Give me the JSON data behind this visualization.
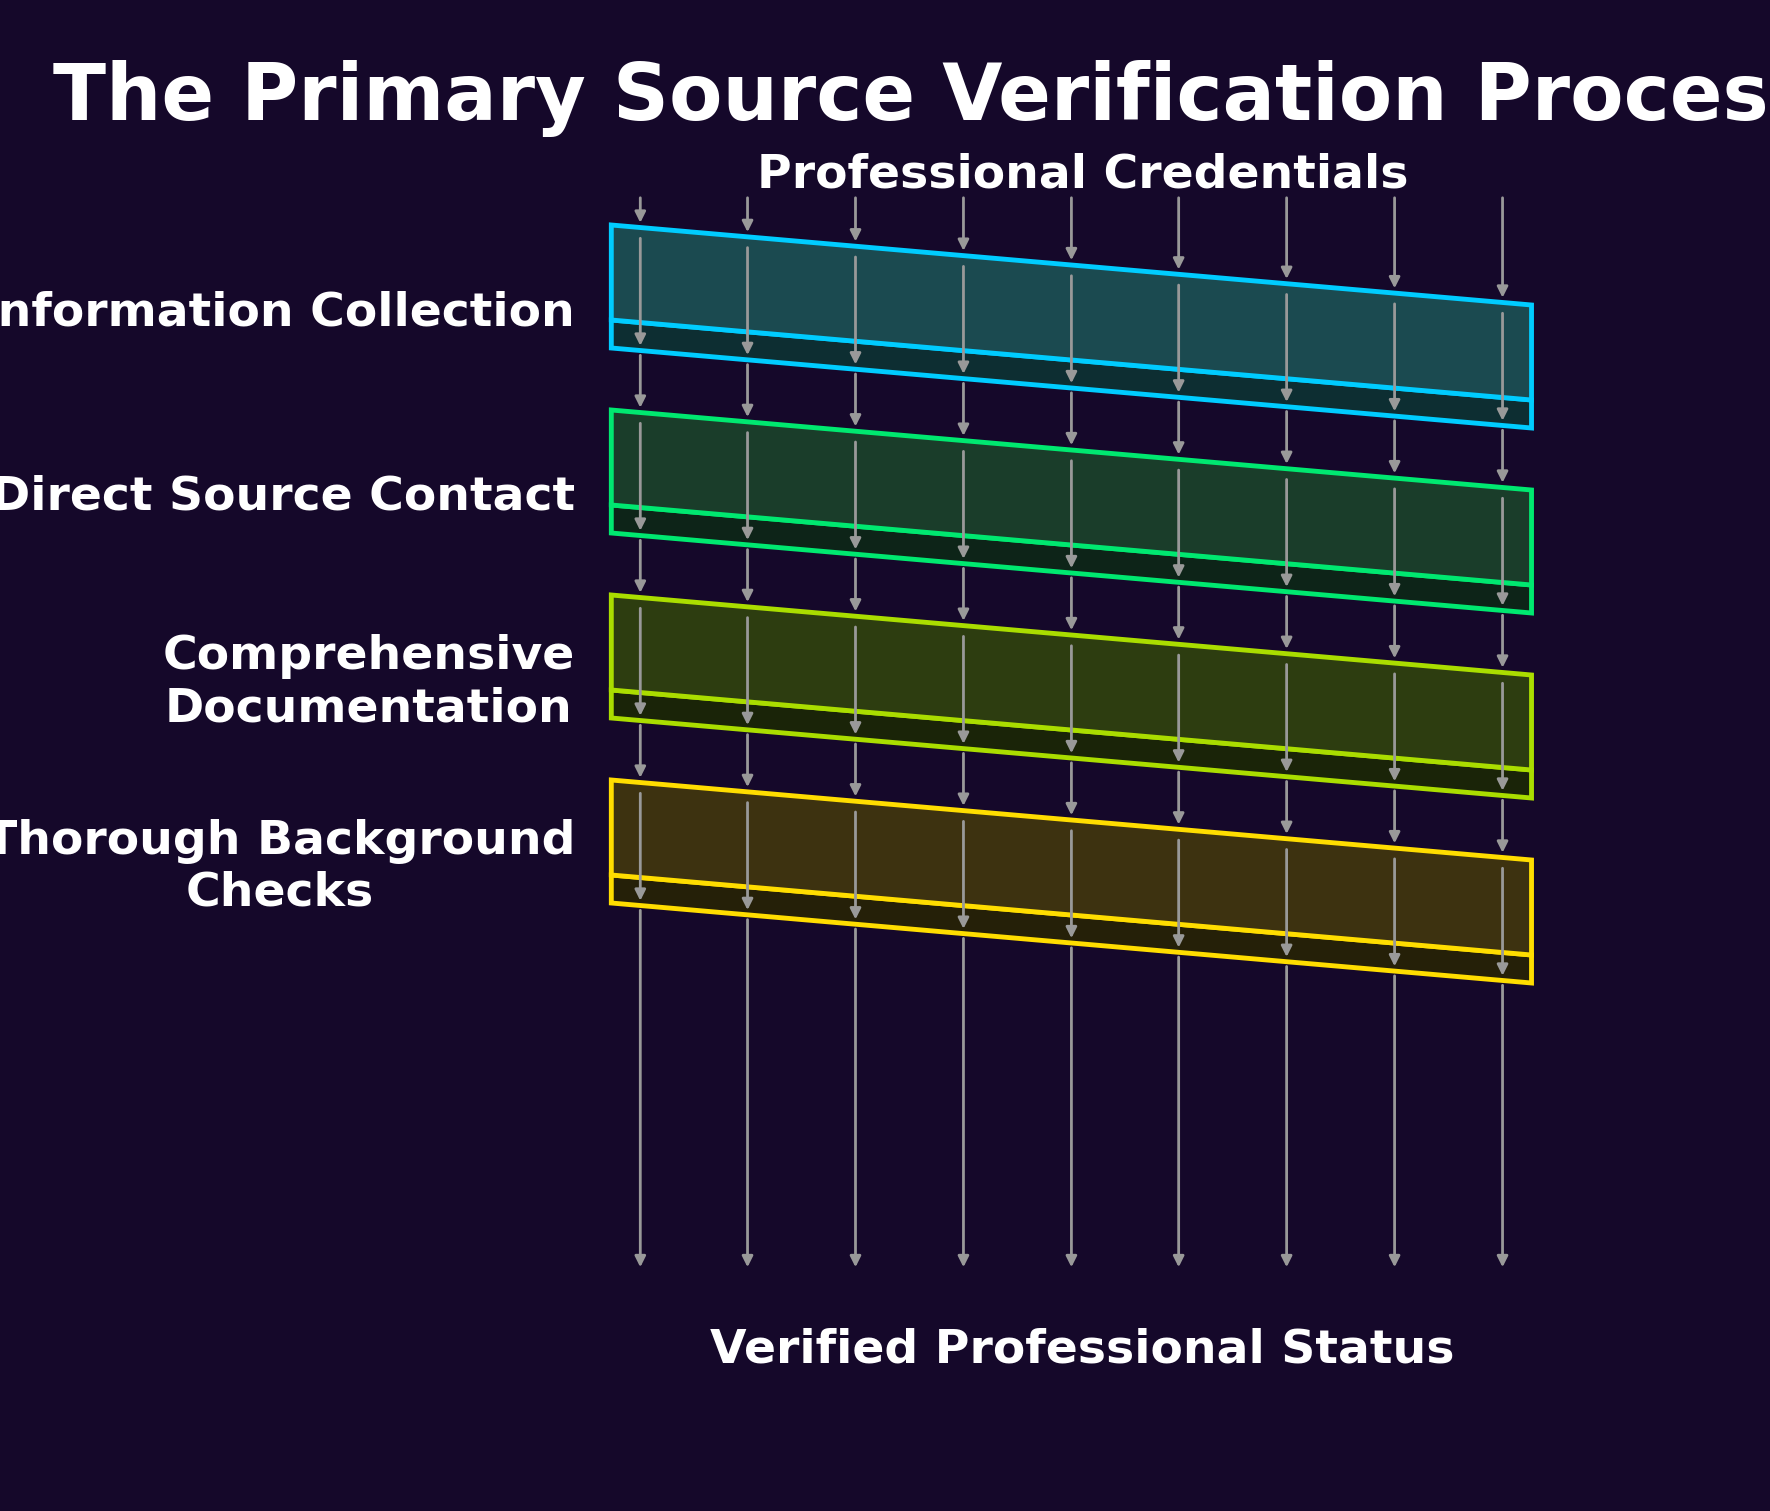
{
  "title": "The Primary Source Verification Process",
  "background_color": "#15082a",
  "text_color": "#ffffff",
  "title_fontsize": 56,
  "label_fontsize": 34,
  "top_label": "Professional Credentials",
  "bottom_label": "Verified Professional Status",
  "layers": [
    {
      "name": "Information Collection",
      "border_color": "#00ccff",
      "fill_color": "#1b4a50",
      "side_color": "#0d2e32"
    },
    {
      "name": "Direct Source Contact",
      "border_color": "#00e870",
      "fill_color": "#1a3d2a",
      "side_color": "#0d2418"
    },
    {
      "name": "Comprehensive\nDocumentation",
      "border_color": "#aadd00",
      "fill_color": "#2d3d10",
      "side_color": "#1a2408"
    },
    {
      "name": "Thorough Background\nChecks",
      "border_color": "#ffdd00",
      "fill_color": "#3d3210",
      "side_color": "#252008"
    }
  ],
  "arrow_color": "#999999",
  "arrow_lw": 2.0,
  "arrow_mutation_scale": 16
}
